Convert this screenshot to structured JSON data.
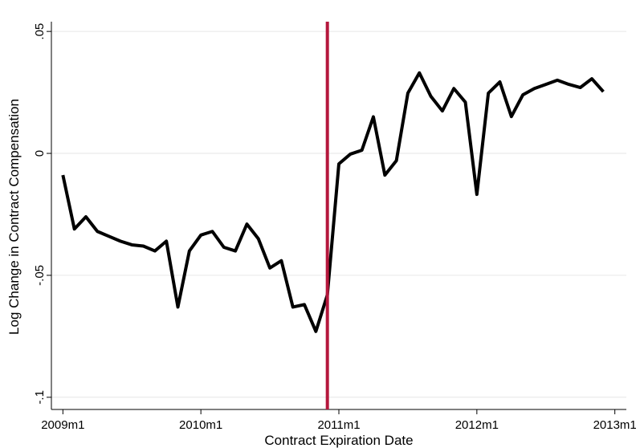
{
  "chart_data": {
    "type": "line",
    "x_label": "Contract Expiration Date",
    "y_label": "Log Change in Contract Compensation",
    "x": [
      588,
      589,
      590,
      591,
      592,
      593,
      594,
      595,
      596,
      597,
      598,
      599,
      600,
      601,
      602,
      603,
      604,
      605,
      606,
      607,
      608,
      609,
      610,
      611,
      612,
      613,
      614,
      615,
      616,
      617,
      618,
      619,
      620,
      621,
      622,
      623,
      624,
      625,
      626,
      627,
      628,
      629,
      630,
      631,
      632,
      633,
      634,
      635
    ],
    "series": [
      {
        "color": "#000000",
        "values": [
          -0.0089,
          -0.031,
          -0.026,
          -0.032,
          -0.034,
          -0.036,
          -0.0375,
          -0.038,
          -0.04,
          -0.036,
          -0.063,
          -0.04,
          -0.0335,
          -0.032,
          -0.0385,
          -0.04,
          -0.029,
          -0.035,
          -0.047,
          -0.044,
          -0.063,
          -0.062,
          -0.073,
          -0.058,
          -0.0043,
          -0.0003,
          0.0013,
          0.015,
          -0.0089,
          -0.003,
          0.0247,
          0.033,
          0.0234,
          0.0174,
          0.0266,
          0.021,
          -0.0168,
          0.0247,
          0.0293,
          0.0151,
          0.024,
          0.0266,
          0.0283,
          0.03,
          0.0283,
          0.027,
          0.0306,
          0.0253
        ]
      }
    ],
    "vline": {
      "x": 611,
      "color": "#b5173c"
    },
    "xlim": [
      587,
      637
    ],
    "xticks": [
      {
        "value": 588,
        "label": "2009m1"
      },
      {
        "value": 600,
        "label": "2010m1"
      },
      {
        "value": 612,
        "label": "2011m1"
      },
      {
        "value": 624,
        "label": "2012m1"
      },
      {
        "value": 636,
        "label": "2013m1"
      }
    ],
    "ylim": [
      -0.105,
      0.054
    ],
    "yticks": [
      {
        "value": -0.1,
        "label": "-.1"
      },
      {
        "value": -0.05,
        "label": "-.05"
      },
      0,
      {
        "value": 0.05,
        "label": ".05"
      }
    ],
    "grid": true
  }
}
